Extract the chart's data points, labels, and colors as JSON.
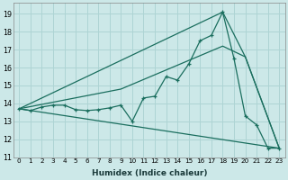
{
  "xlabel": "Humidex (Indice chaleur)",
  "xlim": [
    -0.5,
    23.5
  ],
  "ylim": [
    11,
    19.6
  ],
  "xticks": [
    0,
    1,
    2,
    3,
    4,
    5,
    6,
    7,
    8,
    9,
    10,
    11,
    12,
    13,
    14,
    15,
    16,
    17,
    18,
    19,
    20,
    21,
    22,
    23
  ],
  "yticks": [
    11,
    12,
    13,
    14,
    15,
    16,
    17,
    18,
    19
  ],
  "bg_color": "#cce8e8",
  "line_color": "#1a6e5e",
  "grid_color": "#aed4d4",
  "line1_x": [
    0,
    1,
    2,
    3,
    4,
    5,
    6,
    7,
    8,
    9,
    10,
    11,
    12,
    13,
    14,
    15,
    16,
    17,
    18,
    19,
    20,
    21,
    22,
    23
  ],
  "line1_y": [
    13.7,
    13.6,
    13.8,
    13.9,
    13.9,
    13.65,
    13.6,
    13.65,
    13.75,
    13.9,
    13.0,
    14.3,
    14.4,
    15.5,
    15.3,
    16.2,
    17.5,
    17.8,
    19.1,
    16.5,
    13.3,
    12.8,
    11.5,
    11.5
  ],
  "line2_x": [
    0,
    18,
    20,
    23
  ],
  "line2_y": [
    13.7,
    19.1,
    16.6,
    11.5
  ],
  "line3_x": [
    0,
    9,
    18,
    20,
    23
  ],
  "line3_y": [
    13.7,
    14.8,
    17.2,
    16.6,
    11.5
  ],
  "line4_x": [
    0,
    23
  ],
  "line4_y": [
    13.7,
    11.5
  ]
}
